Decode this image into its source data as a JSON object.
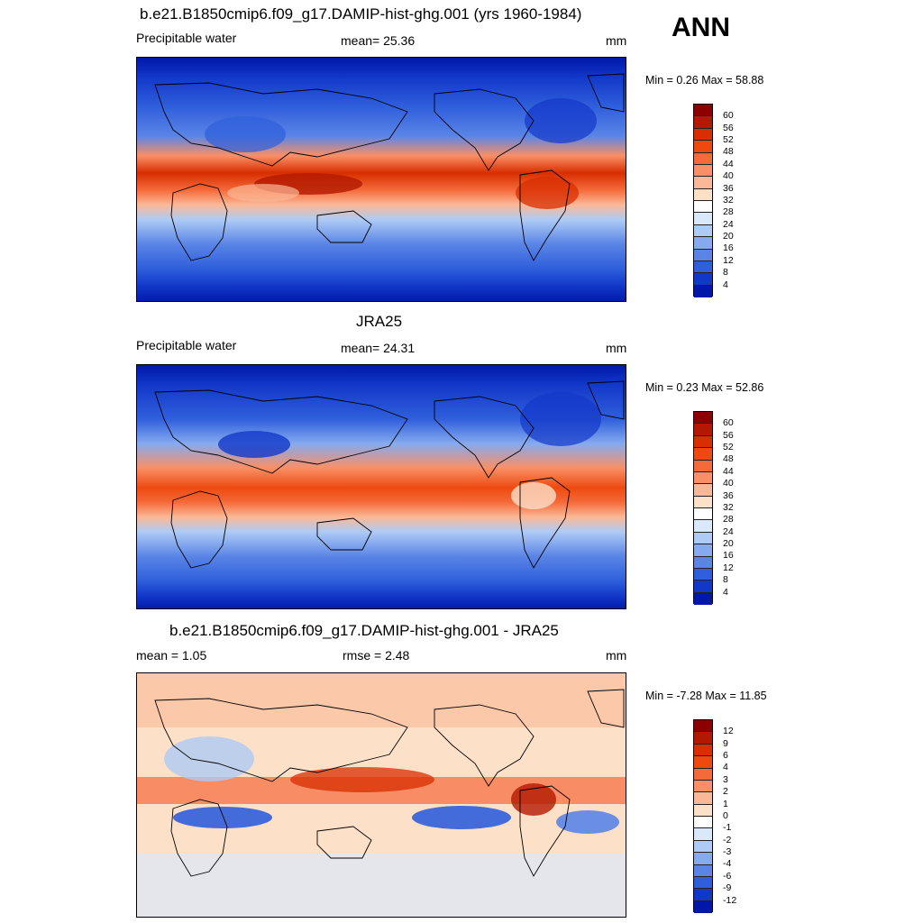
{
  "season": "ANN",
  "panels": [
    {
      "title": "b.e21.B1850cmip6.f09_g17.DAMIP-hist-ghg.001 (yrs 1960-1984)",
      "left_label": "Precipitable water",
      "center_label": "mean=  25.36",
      "units": "mm",
      "minmax": "Min =   0.26 Max =  58.88"
    },
    {
      "title": "JRA25",
      "left_label": "Precipitable water",
      "center_label": "mean=  24.31",
      "units": "mm",
      "minmax": "Min =   0.23 Max =  52.86"
    },
    {
      "title": "b.e21.B1850cmip6.f09_g17.DAMIP-hist-ghg.001 - JRA25",
      "left_label": "mean =   1.05",
      "center_label": "rmse =   2.48",
      "units": "mm",
      "minmax": "Min =  -7.28 Max =  11.85"
    }
  ],
  "colorbars": {
    "abs": {
      "labels": [
        "60",
        "56",
        "52",
        "48",
        "44",
        "40",
        "36",
        "32",
        "28",
        "24",
        "20",
        "16",
        "12",
        "8",
        "4"
      ],
      "colors": [
        "#8c0000",
        "#b31900",
        "#d82e00",
        "#ee4a10",
        "#f56a3a",
        "#f98f66",
        "#fbb896",
        "#fde0c8",
        "#ffffff",
        "#d9e8fb",
        "#aecbf5",
        "#85aaef",
        "#5a85e6",
        "#2f5fdc",
        "#1238c9",
        "#0018a8"
      ]
    },
    "diff": {
      "labels": [
        "12",
        "9",
        "6",
        "4",
        "3",
        "2",
        "1",
        "0",
        "-1",
        "-2",
        "-3",
        "-4",
        "-6",
        "-9",
        "-12"
      ],
      "colors": [
        "#8c0000",
        "#b31900",
        "#d82e00",
        "#ee4a10",
        "#f56a3a",
        "#f98f66",
        "#fbb896",
        "#fde0c8",
        "#ffffff",
        "#d9e8fb",
        "#aecbf5",
        "#85aaef",
        "#5a85e6",
        "#2f5fdc",
        "#1238c9",
        "#0018a8"
      ]
    }
  }
}
